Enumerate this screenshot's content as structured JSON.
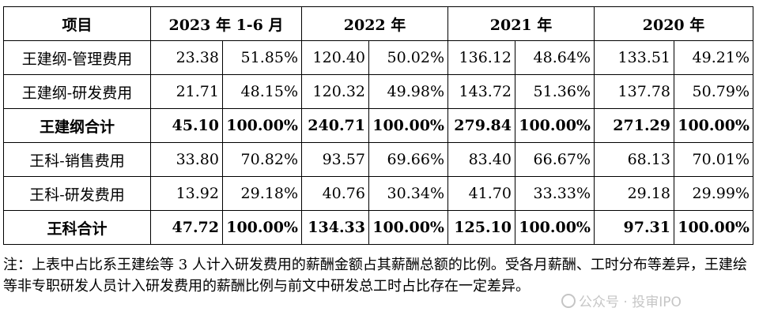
{
  "table": {
    "header": {
      "item": "项目",
      "periods": [
        "2023 年 1-6 月",
        "2022 年",
        "2021 年",
        "2020 年"
      ]
    },
    "rows": [
      {
        "label": "王建纲-管理费用",
        "total": false,
        "cells": [
          "23.38",
          "51.85%",
          "120.40",
          "50.02%",
          "136.12",
          "48.64%",
          "133.51",
          "49.21%"
        ]
      },
      {
        "label": "王建纲-研发费用",
        "total": false,
        "cells": [
          "21.71",
          "48.15%",
          "120.32",
          "49.98%",
          "143.72",
          "51.36%",
          "137.78",
          "50.79%"
        ]
      },
      {
        "label": "王建纲合计",
        "total": true,
        "cells": [
          "45.10",
          "100.00%",
          "240.71",
          "100.00%",
          "279.84",
          "100.00%",
          "271.29",
          "100.00%"
        ]
      },
      {
        "label": "王科-销售费用",
        "total": false,
        "cells": [
          "33.80",
          "70.82%",
          "93.57",
          "69.66%",
          "83.40",
          "66.67%",
          "68.13",
          "70.01%"
        ]
      },
      {
        "label": "王科-研发费用",
        "total": false,
        "cells": [
          "13.92",
          "29.18%",
          "40.76",
          "30.34%",
          "41.70",
          "33.33%",
          "29.18",
          "29.99%"
        ]
      },
      {
        "label": "王科合计",
        "total": true,
        "cells": [
          "47.72",
          "100.00%",
          "134.33",
          "100.00%",
          "125.10",
          "100.00%",
          "97.31",
          "100.00%"
        ]
      }
    ]
  },
  "note": "注：上表中占比系王建绘等 3 人计入研发费用的薪酬金额占其薪酬总额的比例。受各月薪酬、工时分布等差异，王建绘等非专职研发人员计入研发费用的薪酬比例与前文中研发总工时占比存在一定差异。",
  "watermark": "公众号 · 投审IPO"
}
